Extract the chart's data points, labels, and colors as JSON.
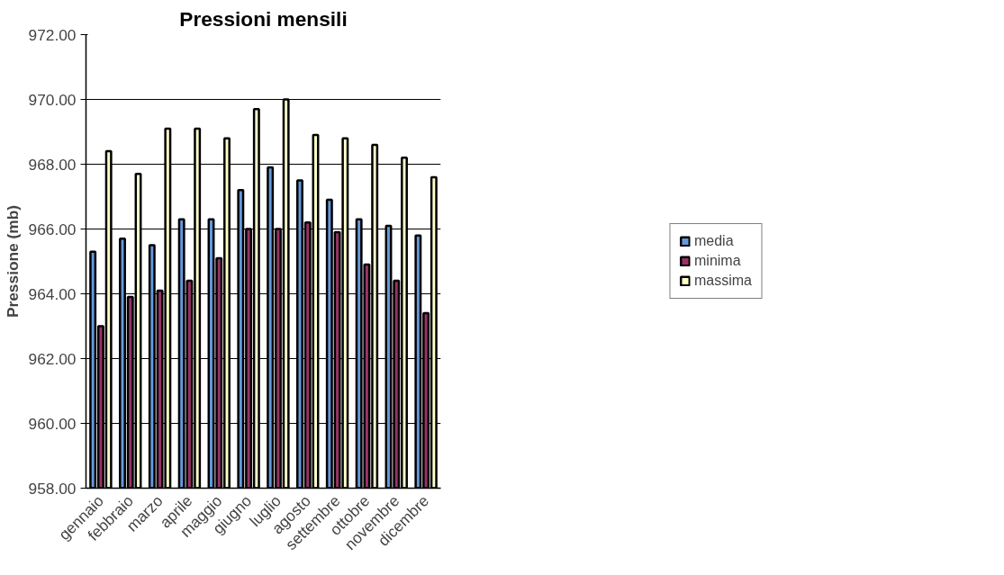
{
  "chart_data": {
    "type": "bar",
    "title": "Pressioni mensili",
    "ylabel": "Pressione (mb)",
    "categories": [
      "gennaio",
      "febbraio",
      "marzo",
      "aprile",
      "maggio",
      "giugno",
      "luglio",
      "agosto",
      "settembre",
      "ottobre",
      "novembre",
      "dicembre"
    ],
    "series": [
      {
        "name": "media",
        "color": "#6699dd",
        "values": [
          965.3,
          965.7,
          965.5,
          966.3,
          966.3,
          967.2,
          967.9,
          967.5,
          966.9,
          966.3,
          966.1,
          965.8
        ]
      },
      {
        "name": "minima",
        "color": "#993366",
        "values": [
          963.0,
          963.9,
          964.1,
          964.4,
          965.1,
          966.0,
          966.0,
          966.2,
          965.9,
          964.9,
          964.4,
          963.4
        ]
      },
      {
        "name": "massima",
        "color": "#ffffcc",
        "values": [
          968.4,
          967.7,
          969.1,
          969.1,
          968.8,
          969.7,
          970.0,
          968.9,
          968.8,
          968.6,
          968.2,
          967.6
        ]
      }
    ],
    "ylim": [
      958,
      972
    ],
    "yticks": [
      {
        "value": 958,
        "label": "958.00"
      },
      {
        "value": 960,
        "label": "960.00"
      },
      {
        "value": 962,
        "label": "962.00"
      },
      {
        "value": 964,
        "label": "964.00"
      },
      {
        "value": 966,
        "label": "966.00"
      },
      {
        "value": 968,
        "label": "968.00"
      },
      {
        "value": 970,
        "label": "970.00"
      },
      {
        "value": 972,
        "label": "972.00"
      }
    ],
    "grid": "y",
    "legend": "right"
  }
}
